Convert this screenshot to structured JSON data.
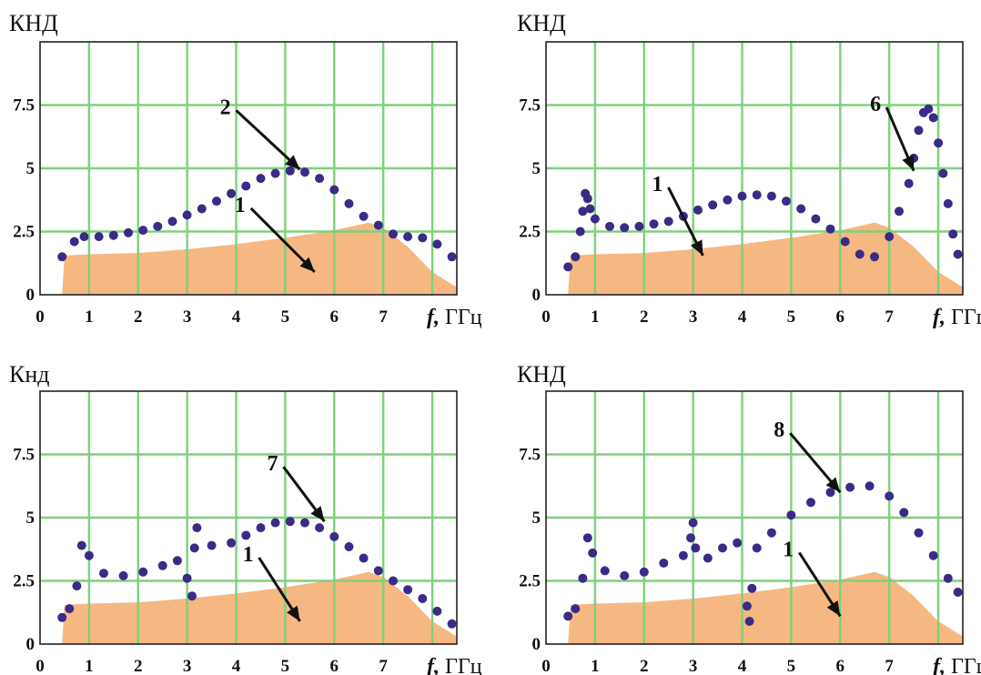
{
  "chart_data": [
    {
      "type": "area",
      "ylabel": "КНД",
      "xlabel": "f, ГГц",
      "xlabel_italic": "f,",
      "xlabel_unit": "ГГц",
      "x_tick_labels": [
        "0",
        "1",
        "2",
        "3",
        "4",
        "5",
        "6",
        "7"
      ],
      "y_tick_labels": [
        "0",
        "2.5",
        "5",
        "7.5"
      ],
      "xlim": [
        0,
        8.5
      ],
      "ylim": [
        0,
        10
      ],
      "grid": true,
      "area": {
        "label": "1",
        "color": "#f6b882",
        "x": [
          0.45,
          0.5,
          1,
          2,
          3,
          4,
          5,
          6,
          6.7,
          7,
          7.5,
          8,
          8.5
        ],
        "y": [
          0,
          1.55,
          1.6,
          1.65,
          1.8,
          2.0,
          2.25,
          2.55,
          2.85,
          2.65,
          1.9,
          0.9,
          0.3
        ]
      },
      "dotted_series": {
        "label": "2",
        "color": "#3b2a86",
        "x": [
          0.45,
          0.7,
          0.9,
          1.2,
          1.5,
          1.8,
          2.1,
          2.4,
          2.7,
          3.0,
          3.3,
          3.6,
          3.9,
          4.2,
          4.5,
          4.8,
          5.1,
          5.4,
          5.7,
          6.0,
          6.3,
          6.6,
          6.9,
          7.2,
          7.5,
          7.8,
          8.1,
          8.4
        ],
        "y": [
          1.5,
          2.1,
          2.3,
          2.3,
          2.35,
          2.45,
          2.55,
          2.7,
          2.9,
          3.15,
          3.4,
          3.7,
          4.0,
          4.3,
          4.6,
          4.8,
          4.9,
          4.85,
          4.6,
          4.15,
          3.6,
          3.1,
          2.75,
          2.4,
          2.3,
          2.25,
          2.0,
          1.5
        ]
      },
      "annotations": [
        {
          "text": "2",
          "x": 5.3,
          "y": 4.95
        },
        {
          "text": "1",
          "x": 5.6,
          "y": 0.9
        }
      ]
    },
    {
      "type": "area",
      "ylabel": "КНД",
      "xlabel": "f, ГГц",
      "xlabel_italic": "f,",
      "xlabel_unit": "ГГц",
      "x_tick_labels": [
        "0",
        "1",
        "2",
        "3",
        "4",
        "5",
        "6",
        "7"
      ],
      "y_tick_labels": [
        "0",
        "2.5",
        "5",
        "7.5"
      ],
      "xlim": [
        0,
        8.5
      ],
      "ylim": [
        0,
        10
      ],
      "grid": true,
      "area": {
        "label": "1",
        "color": "#f6b882",
        "x": [
          0.45,
          0.5,
          1,
          2,
          3,
          4,
          5,
          6,
          6.7,
          7,
          7.5,
          8,
          8.5
        ],
        "y": [
          0,
          1.55,
          1.6,
          1.65,
          1.8,
          2.0,
          2.25,
          2.55,
          2.85,
          2.65,
          1.9,
          0.9,
          0.3
        ]
      },
      "dotted_series": {
        "label": "6",
        "color": "#3b2a86",
        "x": [
          0.45,
          0.6,
          0.7,
          0.75,
          0.8,
          0.85,
          0.9,
          1.0,
          1.3,
          1.6,
          1.9,
          2.2,
          2.5,
          2.8,
          3.1,
          3.4,
          3.7,
          4.0,
          4.3,
          4.6,
          4.9,
          5.2,
          5.5,
          5.8,
          6.1,
          6.4,
          6.7,
          7.0,
          7.2,
          7.4,
          7.5,
          7.6,
          7.7,
          7.8,
          7.9,
          8.0,
          8.1,
          8.2,
          8.3,
          8.4
        ],
        "y": [
          1.1,
          1.5,
          2.5,
          3.3,
          4.0,
          3.8,
          3.4,
          3.0,
          2.7,
          2.65,
          2.7,
          2.8,
          2.9,
          3.1,
          3.35,
          3.55,
          3.75,
          3.9,
          3.95,
          3.9,
          3.7,
          3.4,
          3.0,
          2.6,
          2.1,
          1.6,
          1.5,
          2.3,
          3.3,
          4.4,
          5.4,
          6.5,
          7.2,
          7.35,
          7.0,
          6.0,
          4.8,
          3.6,
          2.4,
          1.6
        ]
      },
      "annotations": [
        {
          "text": "1",
          "x": 3.2,
          "y": 1.55
        },
        {
          "text": "6",
          "x": 7.5,
          "y": 4.9
        }
      ]
    },
    {
      "type": "area",
      "ylabel": "Кнд",
      "xlabel": "f, ГГц",
      "xlabel_italic": "f,",
      "xlabel_unit": "ГГц",
      "x_tick_labels": [
        "0",
        "1",
        "2",
        "3",
        "4",
        "5",
        "6",
        "7"
      ],
      "y_tick_labels": [
        "0",
        "2.5",
        "5",
        "7.5"
      ],
      "xlim": [
        0,
        8.5
      ],
      "ylim": [
        0,
        10
      ],
      "grid": true,
      "area": {
        "label": "1",
        "color": "#f6b882",
        "x": [
          0.45,
          0.5,
          1,
          2,
          3,
          4,
          5,
          6,
          6.7,
          7,
          7.5,
          8,
          8.5
        ],
        "y": [
          0,
          1.55,
          1.6,
          1.65,
          1.8,
          2.0,
          2.25,
          2.55,
          2.85,
          2.65,
          1.9,
          0.9,
          0.3
        ]
      },
      "dotted_series": {
        "label": "7",
        "color": "#3b2a86",
        "x": [
          0.45,
          0.6,
          0.75,
          0.85,
          1.0,
          1.3,
          1.7,
          2.1,
          2.5,
          2.8,
          3.0,
          3.1,
          3.15,
          3.2,
          3.5,
          3.9,
          4.2,
          4.5,
          4.8,
          5.1,
          5.4,
          5.7,
          6.0,
          6.3,
          6.6,
          6.9,
          7.2,
          7.5,
          7.8,
          8.1,
          8.4
        ],
        "y": [
          1.05,
          1.4,
          2.3,
          3.9,
          3.5,
          2.8,
          2.7,
          2.85,
          3.1,
          3.3,
          2.6,
          1.9,
          3.8,
          4.6,
          3.9,
          4.0,
          4.3,
          4.6,
          4.8,
          4.85,
          4.8,
          4.6,
          4.25,
          3.85,
          3.4,
          2.9,
          2.5,
          2.15,
          1.8,
          1.3,
          0.8
        ]
      },
      "annotations": [
        {
          "text": "7",
          "x": 5.8,
          "y": 4.85
        },
        {
          "text": "1",
          "x": 5.3,
          "y": 0.9
        }
      ]
    },
    {
      "type": "area",
      "ylabel": "КНД",
      "xlabel": "f, ГГц",
      "xlabel_italic": "f,",
      "xlabel_unit": "ГГц",
      "x_tick_labels": [
        "0",
        "1",
        "2",
        "3",
        "4",
        "5",
        "6",
        "7"
      ],
      "y_tick_labels": [
        "0",
        "2.5",
        "5",
        "7.5"
      ],
      "xlim": [
        0,
        8.5
      ],
      "ylim": [
        0,
        10
      ],
      "grid": true,
      "area": {
        "label": "1",
        "color": "#f6b882",
        "x": [
          0.45,
          0.5,
          1,
          2,
          3,
          4,
          5,
          6,
          6.7,
          7,
          7.5,
          8,
          8.5
        ],
        "y": [
          0,
          1.55,
          1.6,
          1.65,
          1.8,
          2.0,
          2.25,
          2.55,
          2.85,
          2.65,
          1.9,
          0.9,
          0.3
        ]
      },
      "dotted_series": {
        "label": "8",
        "color": "#3b2a86",
        "x": [
          0.45,
          0.6,
          0.75,
          0.85,
          0.95,
          1.2,
          1.6,
          2.0,
          2.4,
          2.8,
          2.95,
          3.0,
          3.05,
          3.3,
          3.6,
          3.9,
          4.1,
          4.15,
          4.2,
          4.3,
          4.6,
          5.0,
          5.4,
          5.8,
          6.2,
          6.6,
          7.0,
          7.3,
          7.6,
          7.9,
          8.2,
          8.4
        ],
        "y": [
          1.1,
          1.4,
          2.6,
          4.2,
          3.6,
          2.9,
          2.7,
          2.85,
          3.2,
          3.5,
          4.2,
          4.8,
          3.8,
          3.4,
          3.8,
          4.0,
          1.5,
          0.9,
          2.2,
          3.8,
          4.4,
          5.1,
          5.6,
          6.0,
          6.2,
          6.25,
          5.85,
          5.2,
          4.4,
          3.5,
          2.6,
          2.05
        ]
      },
      "annotations": [
        {
          "text": "8",
          "x": 6.0,
          "y": 6.0
        },
        {
          "text": "1",
          "x": 6.0,
          "y": 1.1
        }
      ]
    }
  ]
}
